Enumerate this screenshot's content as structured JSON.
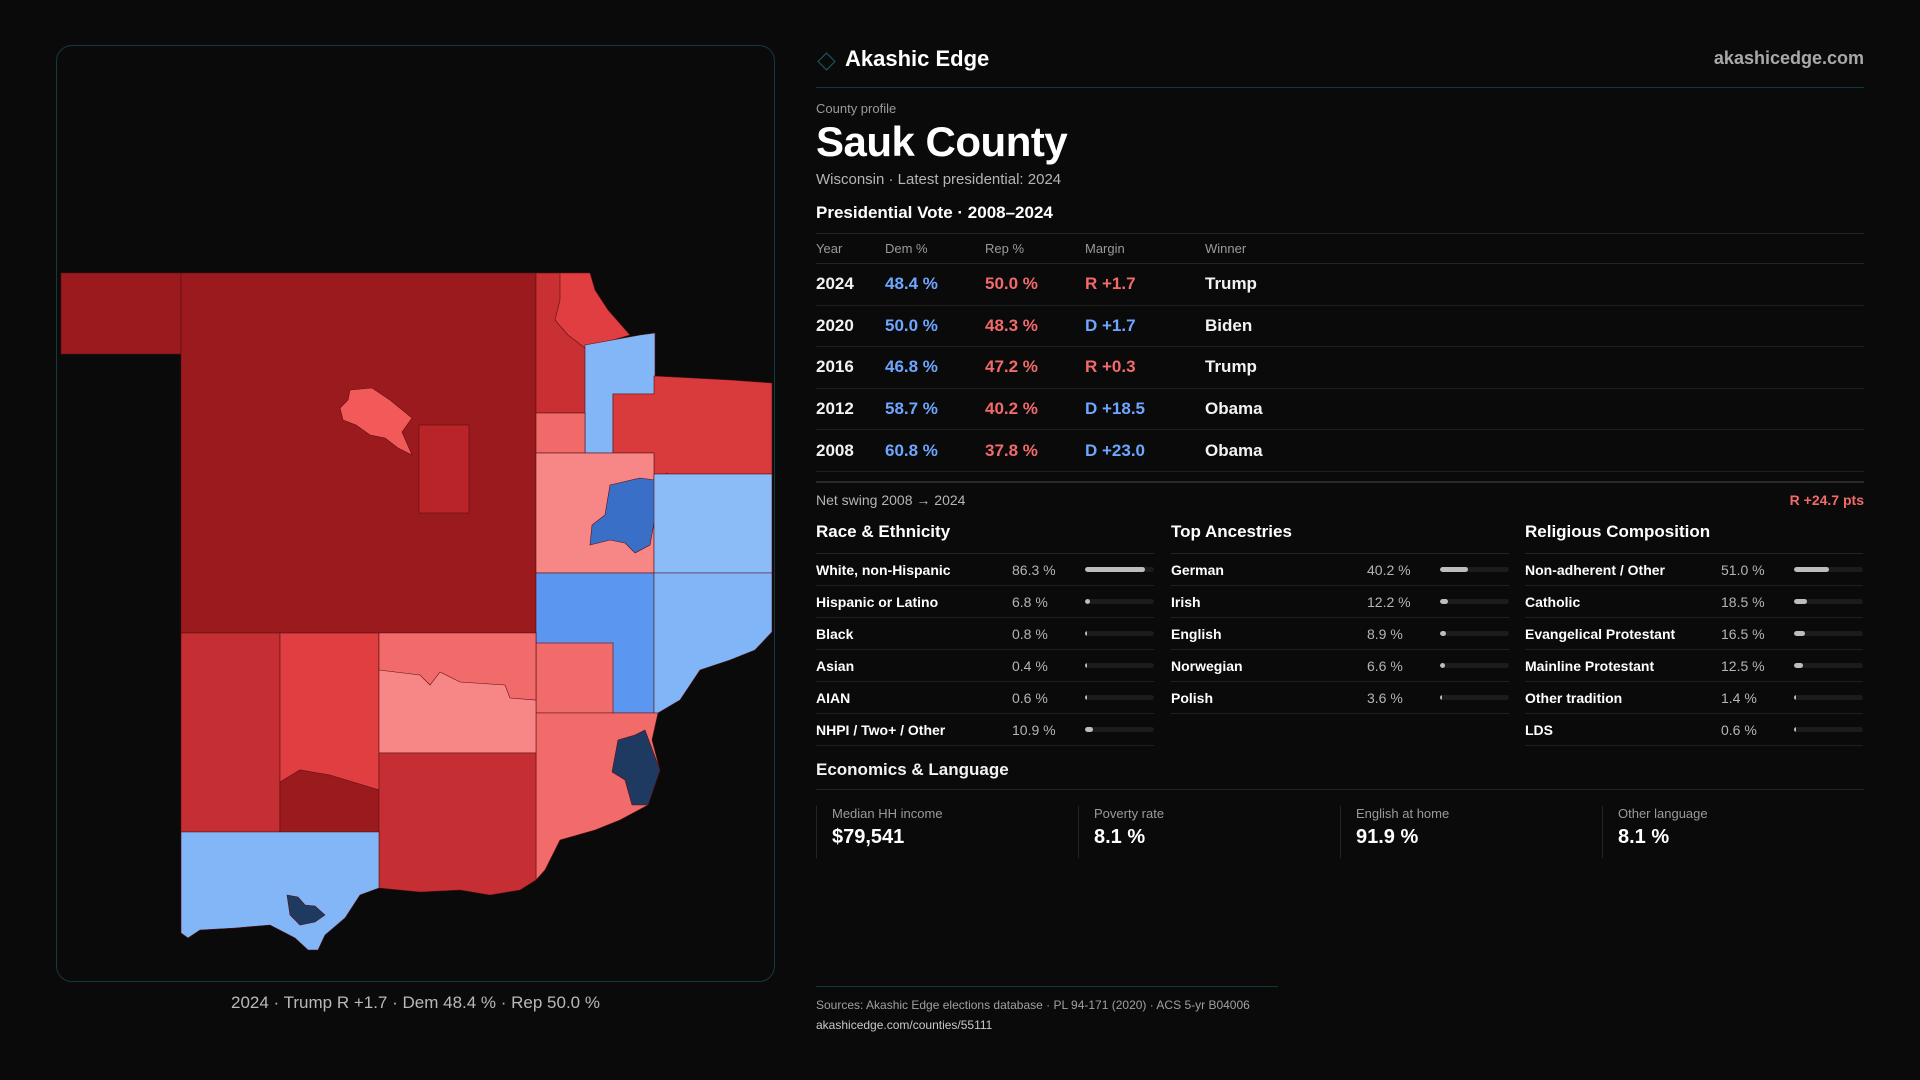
{
  "brand": {
    "name": "Akashic Edge",
    "site": "akashicedge.com"
  },
  "profile": {
    "eyebrow": "County profile",
    "title": "Sauk County",
    "subtitle": "Wisconsin · Latest presidential: 2024"
  },
  "vote": {
    "heading": "Presidential Vote · 2008–2024",
    "columns": [
      "Year",
      "Dem %",
      "Rep %",
      "Margin",
      "Winner"
    ],
    "rows": [
      {
        "year": "2024",
        "dem": "48.4 %",
        "rep": "50.0 %",
        "margin": "R +1.7",
        "party": "rep",
        "winner": "Trump"
      },
      {
        "year": "2020",
        "dem": "50.0 %",
        "rep": "48.3 %",
        "margin": "D +1.7",
        "party": "dem",
        "winner": "Biden"
      },
      {
        "year": "2016",
        "dem": "46.8 %",
        "rep": "47.2 %",
        "margin": "R +0.3",
        "party": "rep",
        "winner": "Trump"
      },
      {
        "year": "2012",
        "dem": "58.7 %",
        "rep": "40.2 %",
        "margin": "D +18.5",
        "party": "dem",
        "winner": "Obama"
      },
      {
        "year": "2008",
        "dem": "60.8 %",
        "rep": "37.8 %",
        "margin": "D +23.0",
        "party": "dem",
        "winner": "Obama"
      }
    ],
    "swing_label": "Net swing 2008 → 2024",
    "swing_value": "R +24.7 pts"
  },
  "race": {
    "heading": "Race & Ethnicity",
    "items": [
      {
        "label": "White, non-Hispanic",
        "pct": "86.3 %",
        "value": 86.3
      },
      {
        "label": "Hispanic or Latino",
        "pct": "6.8 %",
        "value": 6.8
      },
      {
        "label": "Black",
        "pct": "0.8 %",
        "value": 0.8
      },
      {
        "label": "Asian",
        "pct": "0.4 %",
        "value": 0.4
      },
      {
        "label": "AIAN",
        "pct": "0.6 %",
        "value": 0.6
      },
      {
        "label": "NHPI / Two+ / Other",
        "pct": "10.9 %",
        "value": 10.9
      }
    ]
  },
  "ancestry": {
    "heading": "Top Ancestries",
    "items": [
      {
        "label": "German",
        "pct": "40.2 %",
        "value": 40.2
      },
      {
        "label": "Irish",
        "pct": "12.2 %",
        "value": 12.2
      },
      {
        "label": "English",
        "pct": "8.9 %",
        "value": 8.9
      },
      {
        "label": "Norwegian",
        "pct": "6.6 %",
        "value": 6.6
      },
      {
        "label": "Polish",
        "pct": "3.6 %",
        "value": 3.6
      }
    ]
  },
  "religion": {
    "heading": "Religious Composition",
    "items": [
      {
        "label": "Non-adherent / Other",
        "pct": "51.0 %",
        "value": 51.0
      },
      {
        "label": "Catholic",
        "pct": "18.5 %",
        "value": 18.5
      },
      {
        "label": "Evangelical Protestant",
        "pct": "16.5 %",
        "value": 16.5
      },
      {
        "label": "Mainline Protestant",
        "pct": "12.5 %",
        "value": 12.5
      },
      {
        "label": "Other tradition",
        "pct": "1.4 %",
        "value": 1.4
      },
      {
        "label": "LDS",
        "pct": "0.6 %",
        "value": 0.6
      }
    ]
  },
  "economics": {
    "heading": "Economics & Language",
    "stats": [
      {
        "label": "Median HH income",
        "value": "$79,541"
      },
      {
        "label": "Poverty rate",
        "value": "8.1 %"
      },
      {
        "label": "English at home",
        "value": "91.9 %"
      },
      {
        "label": "Other language",
        "value": "8.1 %"
      }
    ]
  },
  "footer": {
    "sources": "Sources: Akashic Edge elections database · PL 94-171 (2020) · ACS 5-yr B04006",
    "url": "akashicedge.com/counties/55111"
  },
  "map": {
    "caption": "2024 · Trump R +1.7 · Dem 48.4 % · Rep 50.0 %"
  }
}
